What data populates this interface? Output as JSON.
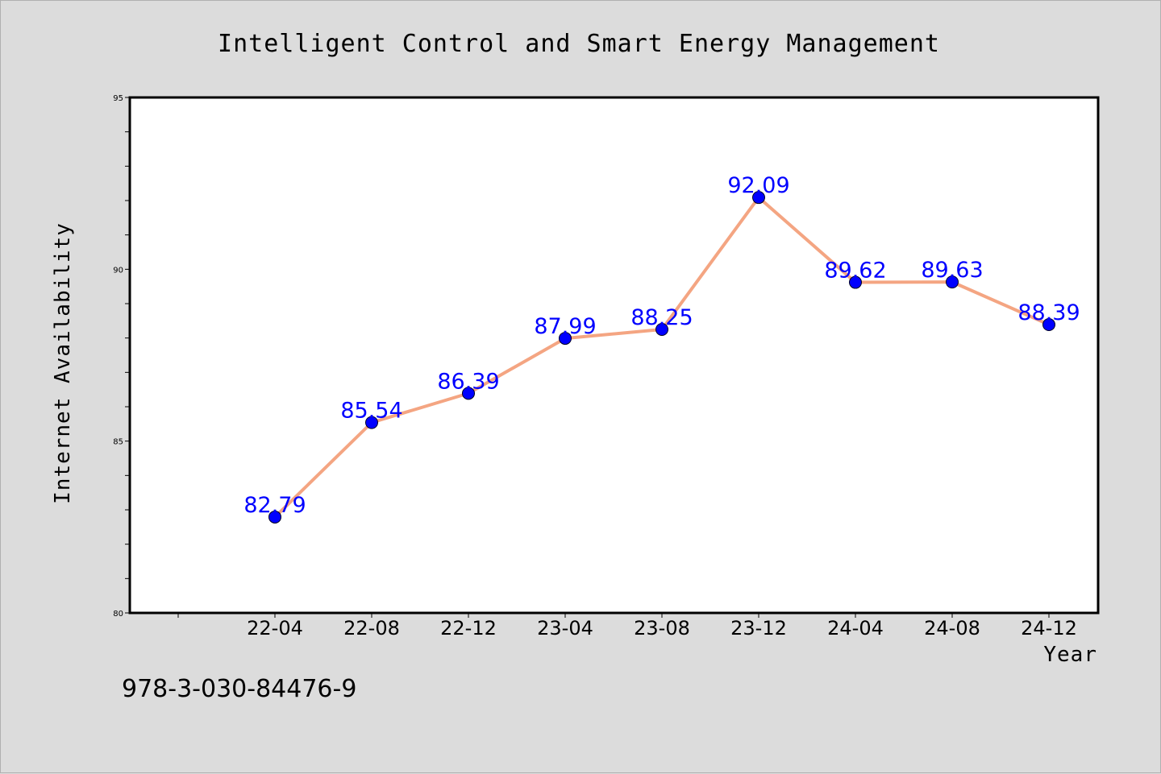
{
  "chart_data": {
    "type": "line",
    "title": "Intelligent Control and Smart Energy Management",
    "xlabel": "Year",
    "ylabel": "Internet Availability",
    "categories": [
      "22-04",
      "22-08",
      "22-12",
      "23-04",
      "23-08",
      "23-12",
      "24-04",
      "24-08",
      "24-12"
    ],
    "series": [
      {
        "values": [
          82.79,
          85.54,
          86.39,
          87.99,
          88.25,
          92.09,
          89.62,
          89.63,
          88.39
        ]
      }
    ],
    "data_labels": [
      "82.79",
      "85.54",
      "86.39",
      "87.99",
      "88.25",
      "92.09",
      "89.62",
      "89.63",
      "88.39"
    ],
    "ylim": [
      80,
      95
    ],
    "yticks": [
      "80",
      "85",
      "90",
      "95"
    ],
    "grid": false,
    "line_color": "#f4a582",
    "marker_color": "#0000ff",
    "label_color": "#0000ff"
  },
  "footer": {
    "text": "978-3-030-84476-9"
  }
}
